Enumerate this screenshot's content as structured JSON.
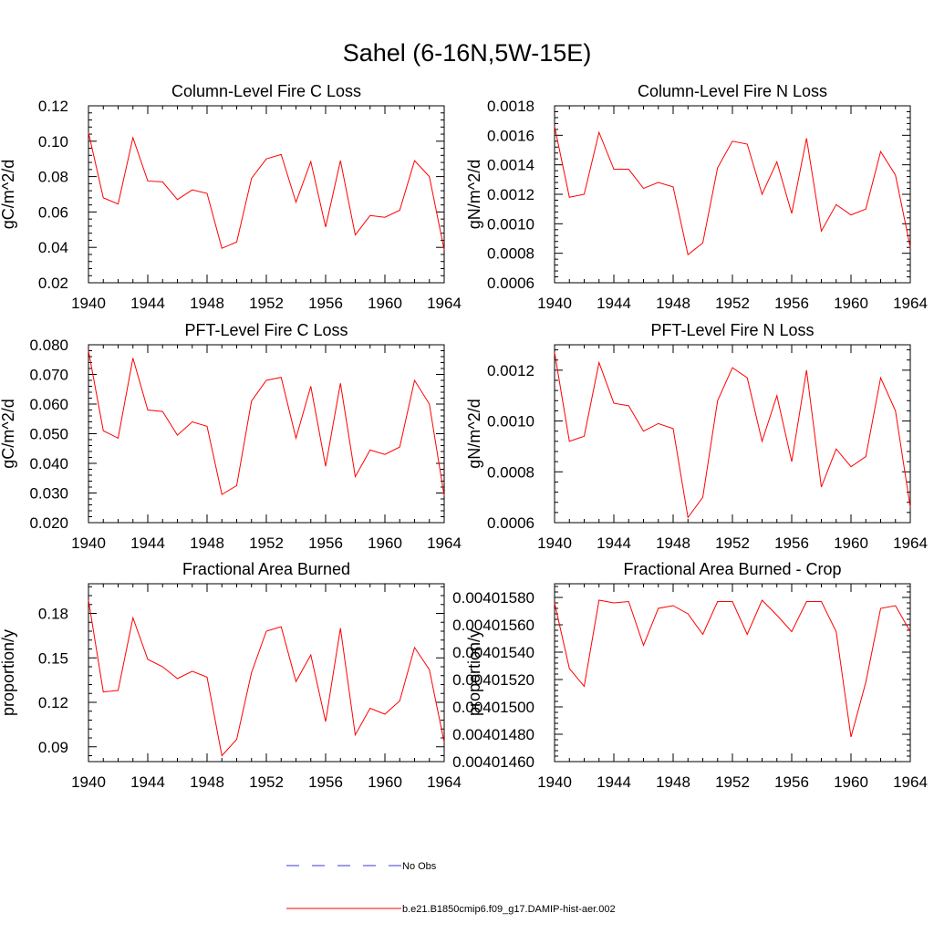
{
  "figure": {
    "title": "Sahel (6-16N,5W-15E)"
  },
  "legend": {
    "obs_label": "No Obs",
    "obs_color": "#3b3bd6",
    "model_label": "b.e21.B1850cmip6.f09_g17.DAMIP-hist-aer.002",
    "model_color": "#ff0000"
  },
  "chart_data": [
    {
      "type": "line",
      "title": "Column-Level Fire C Loss",
      "ylabel": "gC/m^2/d",
      "xlim": [
        1940,
        1964
      ],
      "ylim": [
        0.02,
        0.12
      ],
      "xticks": [
        1940,
        1944,
        1948,
        1952,
        1956,
        1960,
        1964
      ],
      "xtick_labels": [
        "1940",
        "1944",
        "1948",
        "1952",
        "1956",
        "1960",
        "1964"
      ],
      "yticks": [
        0.02,
        0.04,
        0.06,
        0.08,
        0.1,
        0.12
      ],
      "ytick_labels": [
        "0.02",
        "0.04",
        "0.06",
        "0.08",
        "0.10",
        "0.12"
      ],
      "x": [
        1940,
        1941,
        1942,
        1943,
        1944,
        1945,
        1946,
        1947,
        1948,
        1949,
        1950,
        1951,
        1952,
        1953,
        1954,
        1955,
        1956,
        1957,
        1958,
        1959,
        1960,
        1961,
        1962,
        1963,
        1964
      ],
      "series": [
        {
          "values": [
            0.105,
            0.068,
            0.0645,
            0.102,
            0.0775,
            0.077,
            0.067,
            0.0725,
            0.0705,
            0.0395,
            0.043,
            0.079,
            0.09,
            0.0925,
            0.0655,
            0.0885,
            0.0515,
            0.089,
            0.047,
            0.058,
            0.057,
            0.061,
            0.089,
            0.08,
            0.0385
          ],
          "color": "#ff0000"
        }
      ]
    },
    {
      "type": "line",
      "title": "Column-Level Fire N Loss",
      "ylabel": "gN/m^2/d",
      "xlim": [
        1940,
        1964
      ],
      "ylim": [
        0.0006,
        0.0018
      ],
      "xticks": [
        1940,
        1944,
        1948,
        1952,
        1956,
        1960,
        1964
      ],
      "xtick_labels": [
        "1940",
        "1944",
        "1948",
        "1952",
        "1956",
        "1960",
        "1964"
      ],
      "yticks": [
        0.0006,
        0.0008,
        0.001,
        0.0012,
        0.0014,
        0.0016,
        0.0018
      ],
      "ytick_labels": [
        "0.0006",
        "0.0008",
        "0.0010",
        "0.0012",
        "0.0014",
        "0.0016",
        "0.0018"
      ],
      "x": [
        1940,
        1941,
        1942,
        1943,
        1944,
        1945,
        1946,
        1947,
        1948,
        1949,
        1950,
        1951,
        1952,
        1953,
        1954,
        1955,
        1956,
        1957,
        1958,
        1959,
        1960,
        1961,
        1962,
        1963,
        1964
      ],
      "series": [
        {
          "values": [
            0.00166,
            0.00118,
            0.0012,
            0.00162,
            0.00137,
            0.00137,
            0.00124,
            0.00128,
            0.00125,
            0.00079,
            0.00087,
            0.00138,
            0.00156,
            0.00154,
            0.0012,
            0.00142,
            0.00107,
            0.00158,
            0.00095,
            0.00113,
            0.00106,
            0.0011,
            0.00149,
            0.00133,
            0.00084
          ],
          "color": "#ff0000"
        }
      ]
    },
    {
      "type": "line",
      "title": "PFT-Level Fire C Loss",
      "ylabel": "gC/m^2/d",
      "xlim": [
        1940,
        1964
      ],
      "ylim": [
        0.02,
        0.08
      ],
      "xticks": [
        1940,
        1944,
        1948,
        1952,
        1956,
        1960,
        1964
      ],
      "xtick_labels": [
        "1940",
        "1944",
        "1948",
        "1952",
        "1956",
        "1960",
        "1964"
      ],
      "yticks": [
        0.02,
        0.03,
        0.04,
        0.05,
        0.06,
        0.07,
        0.08
      ],
      "ytick_labels": [
        "0.020",
        "0.030",
        "0.040",
        "0.050",
        "0.060",
        "0.070",
        "0.080"
      ],
      "x": [
        1940,
        1941,
        1942,
        1943,
        1944,
        1945,
        1946,
        1947,
        1948,
        1949,
        1950,
        1951,
        1952,
        1953,
        1954,
        1955,
        1956,
        1957,
        1958,
        1959,
        1960,
        1961,
        1962,
        1963,
        1964
      ],
      "series": [
        {
          "values": [
            0.078,
            0.051,
            0.0485,
            0.0755,
            0.058,
            0.0575,
            0.0495,
            0.054,
            0.0525,
            0.0295,
            0.0325,
            0.061,
            0.068,
            0.069,
            0.0485,
            0.066,
            0.039,
            0.067,
            0.0355,
            0.0445,
            0.043,
            0.0455,
            0.068,
            0.06,
            0.029
          ],
          "color": "#ff0000"
        }
      ]
    },
    {
      "type": "line",
      "title": "PFT-Level Fire N Loss",
      "ylabel": "gN/m^2/d",
      "xlim": [
        1940,
        1964
      ],
      "ylim": [
        0.0006,
        0.0013
      ],
      "xticks": [
        1940,
        1944,
        1948,
        1952,
        1956,
        1960,
        1964
      ],
      "xtick_labels": [
        "1940",
        "1944",
        "1948",
        "1952",
        "1956",
        "1960",
        "1964"
      ],
      "yticks": [
        0.0006,
        0.0008,
        0.001,
        0.0012
      ],
      "ytick_labels": [
        "0.0006",
        "0.0008",
        "0.0010",
        "0.0012"
      ],
      "x": [
        1940,
        1941,
        1942,
        1943,
        1944,
        1945,
        1946,
        1947,
        1948,
        1949,
        1950,
        1951,
        1952,
        1953,
        1954,
        1955,
        1956,
        1957,
        1958,
        1959,
        1960,
        1961,
        1962,
        1963,
        1964
      ],
      "series": [
        {
          "values": [
            0.00127,
            0.00092,
            0.00094,
            0.00123,
            0.00107,
            0.00106,
            0.00096,
            0.00099,
            0.00097,
            0.00062,
            0.0007,
            0.00108,
            0.00121,
            0.00117,
            0.00092,
            0.0011,
            0.00084,
            0.0012,
            0.00074,
            0.00089,
            0.00082,
            0.00086,
            0.00117,
            0.00104,
            0.00066
          ],
          "color": "#ff0000"
        }
      ]
    },
    {
      "type": "line",
      "title": "Fractional Area Burned",
      "ylabel": "proportion/y",
      "xlim": [
        1940,
        1964
      ],
      "ylim": [
        0.08,
        0.2
      ],
      "xticks": [
        1940,
        1944,
        1948,
        1952,
        1956,
        1960,
        1964
      ],
      "xtick_labels": [
        "1940",
        "1944",
        "1948",
        "1952",
        "1956",
        "1960",
        "1964"
      ],
      "yticks": [
        0.09,
        0.12,
        0.15,
        0.18
      ],
      "ytick_labels": [
        "0.09",
        "0.12",
        "0.15",
        "0.18"
      ],
      "x": [
        1940,
        1941,
        1942,
        1943,
        1944,
        1945,
        1946,
        1947,
        1948,
        1949,
        1950,
        1951,
        1952,
        1953,
        1954,
        1955,
        1956,
        1957,
        1958,
        1959,
        1960,
        1961,
        1962,
        1963,
        1964
      ],
      "series": [
        {
          "values": [
            0.189,
            0.127,
            0.128,
            0.177,
            0.149,
            0.144,
            0.136,
            0.141,
            0.137,
            0.084,
            0.095,
            0.14,
            0.168,
            0.171,
            0.134,
            0.152,
            0.107,
            0.17,
            0.098,
            0.116,
            0.112,
            0.121,
            0.157,
            0.142,
            0.093
          ],
          "color": "#ff0000"
        }
      ]
    },
    {
      "type": "line",
      "title": "Fractional Area Burned - Crop",
      "ylabel": "proportion/y",
      "xlim": [
        1940,
        1964
      ],
      "ylim": [
        0.0040146,
        0.0040159
      ],
      "xticks": [
        1940,
        1944,
        1948,
        1952,
        1956,
        1960,
        1964
      ],
      "xtick_labels": [
        "1940",
        "1944",
        "1948",
        "1952",
        "1956",
        "1960",
        "1964"
      ],
      "yticks": [
        0.0040146,
        0.0040148,
        0.004015,
        0.0040152,
        0.0040154,
        0.0040156,
        0.0040158
      ],
      "ytick_labels": [
        "0.00401460",
        "0.00401480",
        "0.00401500",
        "0.00401520",
        "0.00401540",
        "0.00401560",
        "0.00401580"
      ],
      "x": [
        1940,
        1941,
        1942,
        1943,
        1944,
        1945,
        1946,
        1947,
        1948,
        1949,
        1950,
        1951,
        1952,
        1953,
        1954,
        1955,
        1956,
        1957,
        1958,
        1959,
        1960,
        1961,
        1962,
        1963,
        1964
      ],
      "series": [
        {
          "values": [
            0.00401576,
            0.00401528,
            0.00401515,
            0.00401578,
            0.00401576,
            0.00401577,
            0.00401545,
            0.00401572,
            0.00401574,
            0.00401568,
            0.00401553,
            0.00401577,
            0.00401577,
            0.00401553,
            0.00401578,
            0.00401567,
            0.00401555,
            0.00401577,
            0.00401577,
            0.00401555,
            0.00401478,
            0.00401518,
            0.00401572,
            0.00401574,
            0.00401555
          ],
          "color": "#ff0000"
        }
      ]
    }
  ]
}
